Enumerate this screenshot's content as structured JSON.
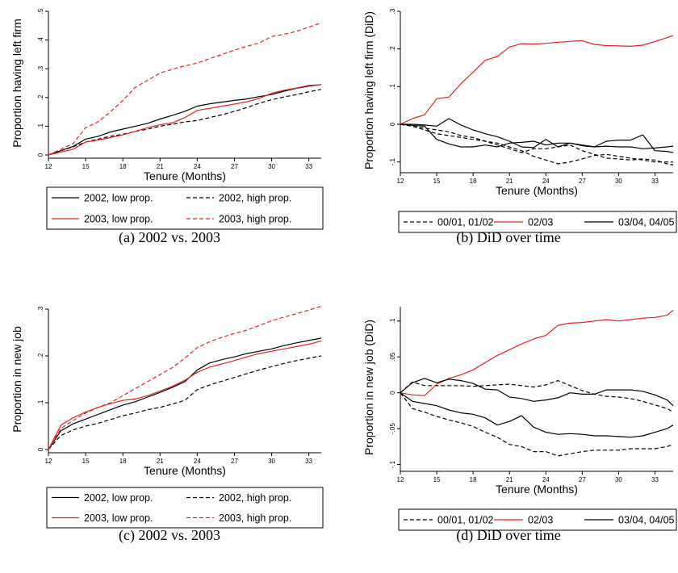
{
  "captions": [
    "(a) 2002 vs. 2003",
    "(b) DiD over time",
    "(c) 2002 vs. 2003",
    "(d) DiD over time"
  ],
  "colors": {
    "black": "#000000",
    "red": "#e8201e"
  },
  "chart_data": [
    {
      "type": "line",
      "title": "",
      "xlabel": "Tenure (Months)",
      "ylabel": "Proportion having left firm",
      "xlim": [
        12,
        34
      ],
      "ylim": [
        0,
        0.5
      ],
      "xticks": [
        12,
        15,
        18,
        21,
        24,
        27,
        30,
        33
      ],
      "xtick_labels": [
        "12",
        "15",
        "18",
        "21",
        "24",
        "27",
        "30",
        "33"
      ],
      "yticks": [
        0,
        0.1,
        0.2,
        0.3,
        0.4,
        0.5
      ],
      "ytick_labels": [
        "0",
        ".1",
        ".2",
        ".3",
        ".4",
        ".5"
      ],
      "legend_position": "bottom",
      "legend_columns": 2,
      "x": [
        12,
        13,
        14,
        15,
        16,
        17,
        18,
        19,
        20,
        21,
        22,
        23,
        24,
        25,
        26,
        27,
        28,
        29,
        30,
        31,
        32,
        33,
        34
      ],
      "series": [
        {
          "name": "2002, low prop.",
          "color": "black",
          "dash": "solid",
          "values": [
            0,
            0.015,
            0.03,
            0.055,
            0.065,
            0.08,
            0.09,
            0.1,
            0.11,
            0.125,
            0.138,
            0.152,
            0.17,
            0.178,
            0.184,
            0.19,
            0.195,
            0.203,
            0.21,
            0.222,
            0.232,
            0.24,
            0.245
          ]
        },
        {
          "name": "2002, high prop.",
          "color": "black",
          "dash": "dashed",
          "values": [
            0,
            0.015,
            0.028,
            0.045,
            0.055,
            0.065,
            0.072,
            0.082,
            0.09,
            0.1,
            0.107,
            0.115,
            0.12,
            0.13,
            0.14,
            0.152,
            0.165,
            0.18,
            0.192,
            0.202,
            0.21,
            0.22,
            0.228
          ]
        },
        {
          "name": "2003, low prop.",
          "color": "red",
          "dash": "solid",
          "values": [
            0,
            0.01,
            0.02,
            0.045,
            0.052,
            0.06,
            0.07,
            0.082,
            0.095,
            0.105,
            0.112,
            0.13,
            0.155,
            0.162,
            0.17,
            0.177,
            0.185,
            0.197,
            0.215,
            0.225,
            0.233,
            0.242,
            0.245
          ]
        },
        {
          "name": "2003, high prop.",
          "color": "red",
          "dash": "dashed",
          "values": [
            0,
            0.02,
            0.04,
            0.095,
            0.115,
            0.15,
            0.19,
            0.235,
            0.26,
            0.285,
            0.298,
            0.31,
            0.32,
            0.335,
            0.35,
            0.365,
            0.378,
            0.39,
            0.412,
            0.42,
            0.43,
            0.445,
            0.46
          ]
        }
      ]
    },
    {
      "type": "line",
      "title": "",
      "xlabel": "Tenure (Months)",
      "ylabel": "Proportion having left firm (DiD)",
      "xlim": [
        12,
        34.5
      ],
      "ylim": [
        -0.12,
        0.3
      ],
      "xticks": [
        12,
        15,
        18,
        21,
        24,
        27,
        30,
        33
      ],
      "xtick_labels": [
        "12",
        "15",
        "18",
        "21",
        "24",
        "27",
        "30",
        "33"
      ],
      "yticks": [
        -0.1,
        0,
        0.1,
        0.2,
        0.3
      ],
      "ytick_labels": [
        "-.1",
        "0",
        ".1",
        ".2",
        ".3"
      ],
      "legend_position": "bottom",
      "legend_columns": 3,
      "x": [
        12,
        13,
        14,
        15,
        16,
        17,
        18,
        19,
        20,
        21,
        22,
        23,
        24,
        25,
        26,
        27,
        28,
        29,
        30,
        31,
        32,
        33,
        34,
        34.5
      ],
      "series": [
        {
          "name": "00/01, 01/02",
          "color": "black",
          "dash": "dashed",
          "values": [
            0,
            -0.005,
            -0.01,
            -0.015,
            -0.02,
            -0.03,
            -0.035,
            -0.045,
            -0.05,
            -0.06,
            -0.07,
            -0.085,
            -0.095,
            -0.105,
            -0.1,
            -0.092,
            -0.083,
            -0.08,
            -0.085,
            -0.09,
            -0.095,
            -0.1,
            -0.1,
            -0.1
          ],
          "group": 1
        },
        {
          "name": "00/01, 01/02",
          "color": "black",
          "dash": "dashed",
          "values": [
            0,
            -0.005,
            -0.015,
            -0.025,
            -0.03,
            -0.035,
            -0.04,
            -0.045,
            -0.055,
            -0.065,
            -0.075,
            -0.065,
            -0.065,
            -0.06,
            -0.055,
            -0.07,
            -0.08,
            -0.09,
            -0.092,
            -0.095,
            -0.092,
            -0.095,
            -0.105,
            -0.108
          ],
          "group": 1
        },
        {
          "name": "02/03",
          "color": "red",
          "dash": "solid",
          "values": [
            0,
            0.015,
            0.025,
            0.068,
            0.072,
            0.108,
            0.138,
            0.17,
            0.18,
            0.205,
            0.214,
            0.213,
            0.215,
            0.218,
            0.22,
            0.222,
            0.212,
            0.209,
            0.208,
            0.207,
            0.21,
            0.22,
            0.23,
            0.236
          ],
          "group": 2
        },
        {
          "name": "03/04, 04/05",
          "color": "black",
          "dash": "solid",
          "values": [
            0,
            0,
            -0.002,
            -0.005,
            0.015,
            -0.002,
            -0.015,
            -0.025,
            -0.033,
            -0.045,
            -0.06,
            -0.062,
            -0.04,
            -0.06,
            -0.05,
            -0.055,
            -0.06,
            -0.045,
            -0.042,
            -0.042,
            -0.028,
            -0.07,
            -0.072,
            -0.075
          ],
          "group": 3
        },
        {
          "name": "03/04, 04/05",
          "color": "black",
          "dash": "solid",
          "values": [
            0,
            -0.003,
            -0.005,
            -0.04,
            -0.052,
            -0.06,
            -0.06,
            -0.055,
            -0.06,
            -0.05,
            -0.048,
            -0.045,
            -0.055,
            -0.05,
            -0.05,
            -0.057,
            -0.06,
            -0.058,
            -0.06,
            -0.06,
            -0.065,
            -0.063,
            -0.06,
            -0.058
          ],
          "group": 3
        }
      ]
    },
    {
      "type": "line",
      "title": "",
      "xlabel": "Tenure (Months)",
      "ylabel": "Proportion in new job",
      "xlim": [
        12,
        34
      ],
      "ylim": [
        0,
        0.3
      ],
      "xticks": [
        12,
        15,
        18,
        21,
        24,
        27,
        30,
        33
      ],
      "xtick_labels": [
        "12",
        "15",
        "18",
        "21",
        "24",
        "27",
        "30",
        "33"
      ],
      "yticks": [
        0,
        0.1,
        0.2,
        0.3
      ],
      "ytick_labels": [
        "0",
        ".1",
        ".2",
        ".3"
      ],
      "legend_position": "bottom",
      "legend_columns": 2,
      "x": [
        12,
        13,
        14,
        15,
        16,
        17,
        18,
        19,
        20,
        21,
        22,
        23,
        24,
        25,
        26,
        27,
        28,
        29,
        30,
        31,
        32,
        33,
        34
      ],
      "series": [
        {
          "name": "2002, low prop.",
          "color": "black",
          "dash": "solid",
          "values": [
            0,
            0.04,
            0.055,
            0.065,
            0.075,
            0.085,
            0.095,
            0.102,
            0.112,
            0.122,
            0.133,
            0.145,
            0.17,
            0.185,
            0.192,
            0.198,
            0.205,
            0.21,
            0.215,
            0.222,
            0.228,
            0.233,
            0.238
          ]
        },
        {
          "name": "2002, high prop.",
          "color": "black",
          "dash": "dashed",
          "values": [
            0,
            0.03,
            0.042,
            0.05,
            0.056,
            0.064,
            0.072,
            0.078,
            0.085,
            0.09,
            0.097,
            0.105,
            0.128,
            0.138,
            0.146,
            0.154,
            0.162,
            0.17,
            0.177,
            0.184,
            0.19,
            0.195,
            0.2
          ]
        },
        {
          "name": "2003, low prop.",
          "color": "red",
          "dash": "solid",
          "values": [
            0,
            0.052,
            0.068,
            0.08,
            0.09,
            0.098,
            0.105,
            0.108,
            0.115,
            0.125,
            0.135,
            0.148,
            0.165,
            0.176,
            0.183,
            0.19,
            0.198,
            0.205,
            0.21,
            0.215,
            0.22,
            0.225,
            0.232
          ]
        },
        {
          "name": "2003, high prop.",
          "color": "red",
          "dash": "dashed",
          "values": [
            0,
            0.045,
            0.062,
            0.078,
            0.09,
            0.1,
            0.115,
            0.13,
            0.145,
            0.16,
            0.175,
            0.195,
            0.218,
            0.23,
            0.24,
            0.248,
            0.255,
            0.265,
            0.275,
            0.283,
            0.29,
            0.298,
            0.306
          ]
        }
      ]
    },
    {
      "type": "line",
      "title": "",
      "xlabel": "Tenure (Months)",
      "ylabel": "Proportion in new job (DiD)",
      "xlim": [
        12,
        34.5
      ],
      "ylim": [
        -0.105,
        0.12
      ],
      "xticks": [
        12,
        15,
        18,
        21,
        24,
        27,
        30,
        33
      ],
      "xtick_labels": [
        "12",
        "15",
        "18",
        "21",
        "24",
        "27",
        "30",
        "33"
      ],
      "yticks": [
        -0.1,
        -0.05,
        0,
        0.05,
        0.1
      ],
      "ytick_labels": [
        "-.1",
        "-.05",
        "0",
        ".05",
        ".1"
      ],
      "legend_position": "bottom",
      "legend_columns": 3,
      "x": [
        12,
        13,
        14,
        15,
        16,
        17,
        18,
        19,
        20,
        21,
        22,
        23,
        24,
        25,
        26,
        27,
        28,
        29,
        30,
        31,
        32,
        33,
        34,
        34.5
      ],
      "series": [
        {
          "name": "00/01, 01/02",
          "color": "black",
          "dash": "dashed",
          "values": [
            0,
            -0.022,
            -0.027,
            -0.033,
            -0.038,
            -0.042,
            -0.047,
            -0.055,
            -0.062,
            -0.072,
            -0.075,
            -0.082,
            -0.082,
            -0.088,
            -0.085,
            -0.082,
            -0.08,
            -0.08,
            -0.08,
            -0.078,
            -0.078,
            -0.078,
            -0.075,
            -0.072
          ],
          "group": 1
        },
        {
          "name": "00/01, 01/02",
          "color": "black",
          "dash": "dashed",
          "values": [
            0,
            0.015,
            0.01,
            0.01,
            0.01,
            0.01,
            0.009,
            0.01,
            0.011,
            0.012,
            0.01,
            0.008,
            0.011,
            0.017,
            0.01,
            0.003,
            -0.002,
            -0.005,
            -0.006,
            -0.008,
            -0.012,
            -0.017,
            -0.022,
            -0.027
          ],
          "group": 1
        },
        {
          "name": "02/03",
          "color": "red",
          "dash": "solid",
          "values": [
            0,
            -0.003,
            -0.004,
            0.012,
            0.02,
            0.025,
            0.032,
            0.042,
            0.052,
            0.06,
            0.068,
            0.075,
            0.08,
            0.094,
            0.097,
            0.098,
            0.1,
            0.102,
            0.1,
            0.102,
            0.104,
            0.105,
            0.108,
            0.115
          ],
          "group": 2
        },
        {
          "name": "03/04, 04/05",
          "color": "black",
          "dash": "solid",
          "values": [
            0,
            0.014,
            0.02,
            0.014,
            0.019,
            0.017,
            0.013,
            0.005,
            0.004,
            -0.006,
            -0.008,
            -0.012,
            -0.01,
            -0.007,
            0,
            -0.002,
            -0.002,
            0.004,
            0.004,
            0.004,
            0.002,
            -0.003,
            -0.01,
            -0.018
          ],
          "group": 3
        },
        {
          "name": "03/04, 04/05",
          "color": "black",
          "dash": "solid",
          "values": [
            0,
            -0.012,
            -0.015,
            -0.018,
            -0.024,
            -0.028,
            -0.03,
            -0.035,
            -0.045,
            -0.04,
            -0.032,
            -0.048,
            -0.055,
            -0.058,
            -0.057,
            -0.058,
            -0.06,
            -0.06,
            -0.061,
            -0.062,
            -0.06,
            -0.055,
            -0.05,
            -0.045
          ],
          "group": 3
        }
      ]
    }
  ]
}
